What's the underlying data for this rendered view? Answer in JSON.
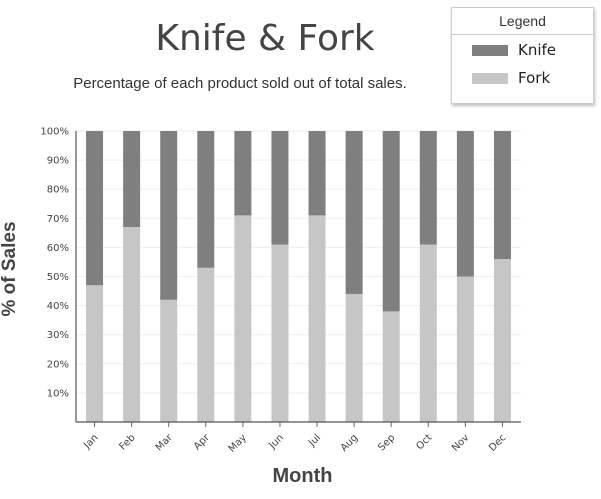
{
  "chart_data": {
    "type": "bar",
    "stacked": true,
    "title": "Knife & Fork",
    "subtitle": "Percentage of each product sold out of total sales.",
    "xlabel": "Month",
    "ylabel": "% of Sales",
    "ylim": [
      0,
      100
    ],
    "y_ticks": [
      "10%",
      "20%",
      "30%",
      "40%",
      "50%",
      "60%",
      "70%",
      "80%",
      "90%",
      "100%"
    ],
    "grid": true,
    "legend_position": "top-right",
    "categories": [
      "Jan",
      "Feb",
      "Mar",
      "Apr",
      "May",
      "Jun",
      "Jul",
      "Aug",
      "Sep",
      "Oct",
      "Nov",
      "Dec"
    ],
    "series": [
      {
        "name": "Fork",
        "color": "#c6c6c6",
        "values": [
          47,
          67,
          42,
          53,
          71,
          61,
          71,
          44,
          38,
          61,
          50,
          56
        ]
      },
      {
        "name": "Knife",
        "color": "#7f7f7f",
        "values": [
          53,
          33,
          58,
          47,
          29,
          39,
          29,
          56,
          62,
          39,
          50,
          44
        ]
      }
    ]
  },
  "legend": {
    "title": "Legend",
    "items": [
      {
        "label": "Knife",
        "color": "#7f7f7f"
      },
      {
        "label": "Fork",
        "color": "#c6c6c6"
      }
    ]
  }
}
